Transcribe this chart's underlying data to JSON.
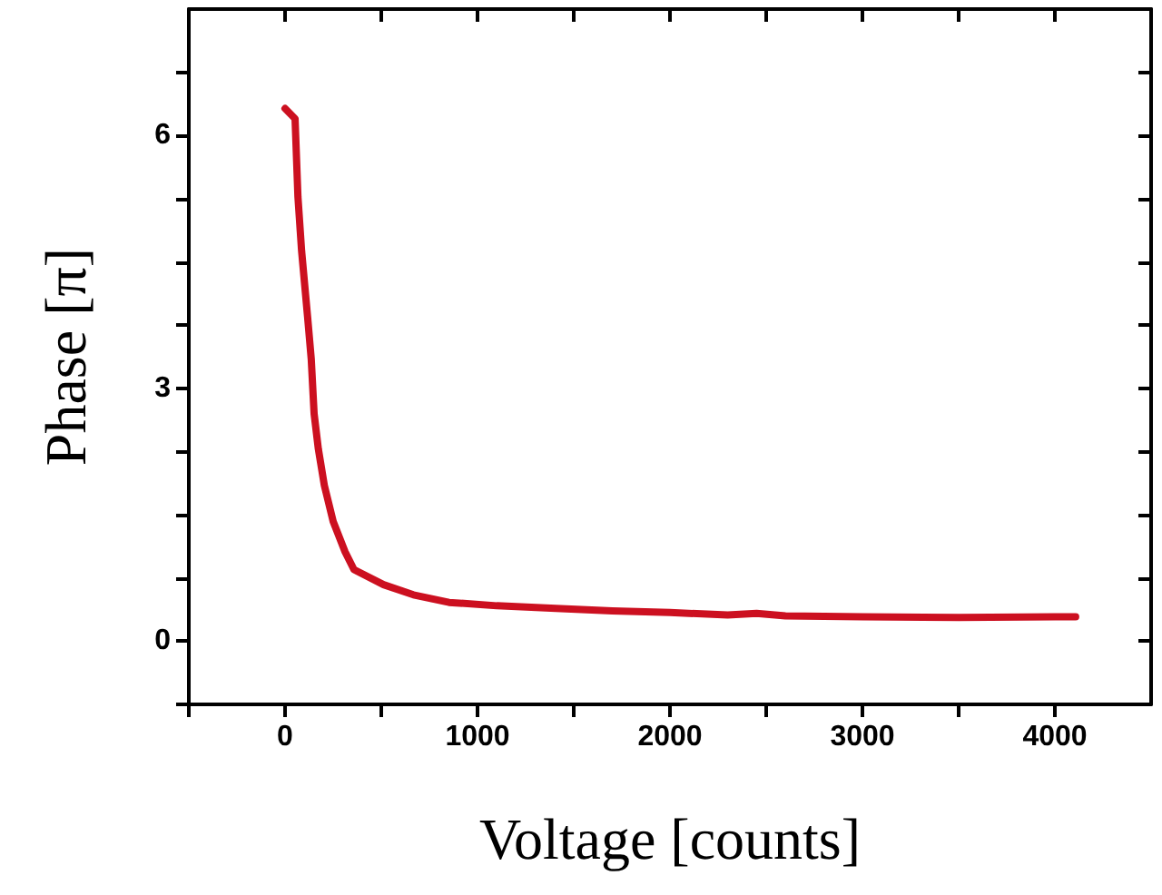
{
  "chart_data": {
    "type": "line",
    "xlabel": "Voltage [counts]",
    "ylabel": "Phase [π]",
    "xlim": [
      -500,
      4500
    ],
    "ylim": [
      -0.75,
      7.5
    ],
    "xticks": [
      {
        "value": -500,
        "label": null
      },
      0,
      {
        "value": 500,
        "label": null
      },
      1000,
      {
        "value": 1500,
        "label": null
      },
      2000,
      {
        "value": 2500,
        "label": null
      },
      3000,
      {
        "value": 3500,
        "label": null
      },
      4000
    ],
    "yticks": [
      {
        "value": -0.75,
        "label": null
      },
      0,
      {
        "value": 0.75,
        "label": null
      },
      {
        "value": 1.5,
        "label": null
      },
      {
        "value": 2.25,
        "label": null
      },
      3,
      {
        "value": 3.75,
        "label": null
      },
      {
        "value": 4.5,
        "label": null
      },
      {
        "value": 5.25,
        "label": null
      },
      6,
      {
        "value": 6.75,
        "label": null
      }
    ],
    "grid": false,
    "marker": "none",
    "line_style": "solid",
    "series": [
      {
        "color": "#cc1020",
        "x": [
          0,
          52,
          67,
          86,
          117,
          136,
          151,
          173,
          204,
          250,
          312,
          358,
          512,
          667,
          852,
          1100,
          1407,
          1700,
          2000,
          2300,
          2450,
          2600,
          3000,
          3500,
          4000,
          4108
        ],
        "values": [
          6.32,
          6.2,
          5.27,
          4.63,
          3.85,
          3.35,
          2.7,
          2.28,
          1.85,
          1.42,
          1.06,
          0.85,
          0.67,
          0.55,
          0.46,
          0.42,
          0.39,
          0.36,
          0.34,
          0.31,
          0.33,
          0.3,
          0.29,
          0.28,
          0.29,
          0.29
        ]
      }
    ]
  }
}
